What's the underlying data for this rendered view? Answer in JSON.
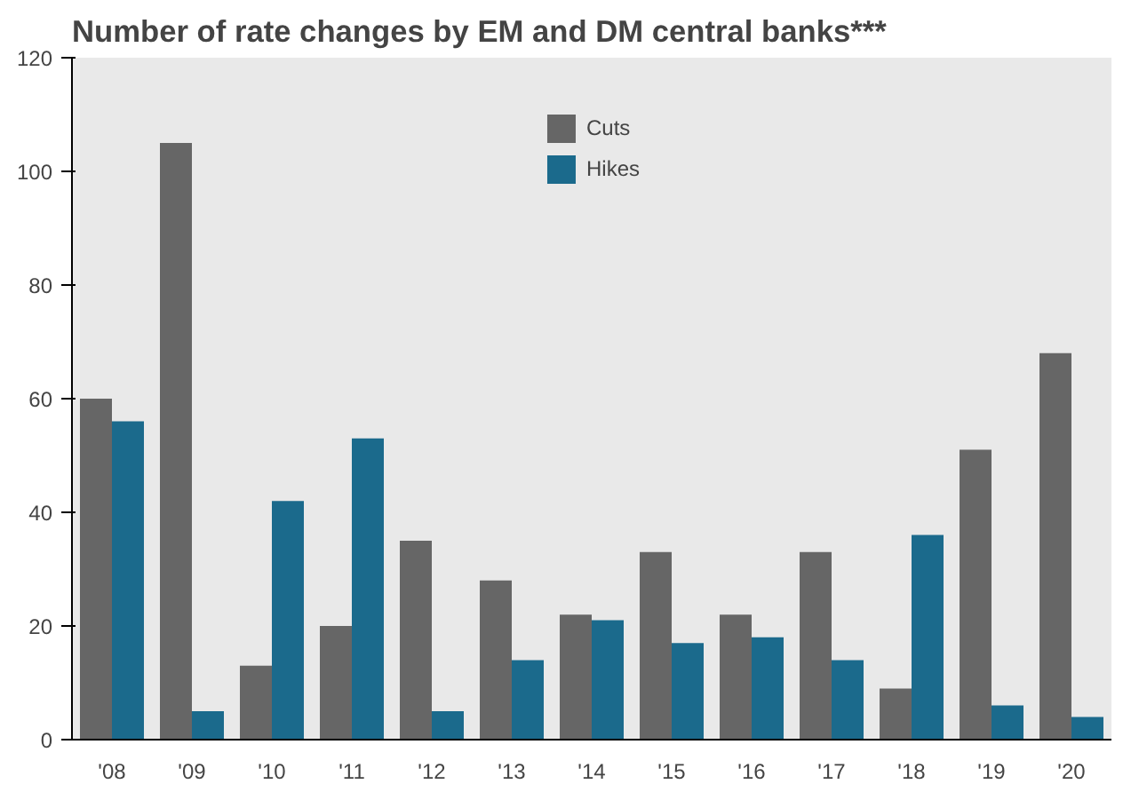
{
  "chart_data": {
    "type": "bar",
    "title": "Number of rate changes by EM and DM central banks***",
    "categories": [
      "'08",
      "'09",
      "'10",
      "'11",
      "'12",
      "'13",
      "'14",
      "'15",
      "'16",
      "'17",
      "'18",
      "'19",
      "'20"
    ],
    "series": [
      {
        "name": "Cuts",
        "color": "#666666",
        "values": [
          60,
          105,
          13,
          20,
          35,
          28,
          22,
          33,
          22,
          33,
          9,
          51,
          68
        ]
      },
      {
        "name": "Hikes",
        "color": "#1b6a8c",
        "values": [
          56,
          5,
          42,
          53,
          5,
          14,
          21,
          17,
          18,
          14,
          36,
          6,
          4
        ]
      }
    ],
    "ylim": [
      0,
      120
    ],
    "yticks": [
      0,
      20,
      40,
      60,
      80,
      100,
      120
    ],
    "legend": "top"
  }
}
